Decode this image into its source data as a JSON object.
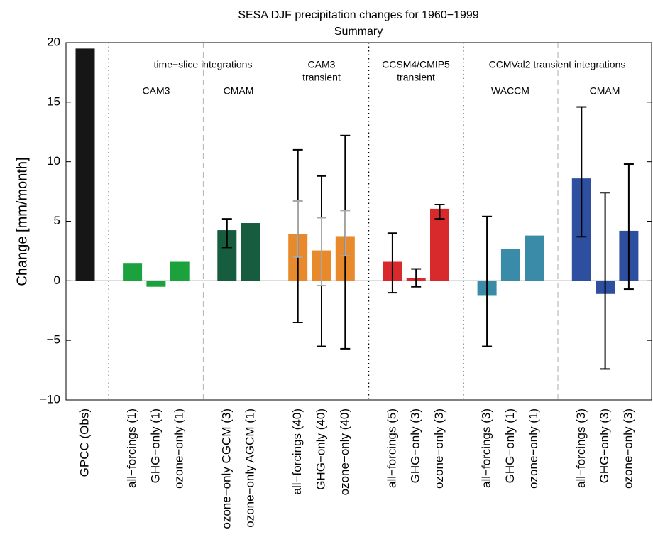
{
  "chart_data": {
    "type": "bar",
    "title": "SESA DJF precipitation changes for 1960−1999",
    "subtitle": "Summary",
    "y_label": "Change [mm/month]",
    "categories": [
      "GPCC (Obs)",
      null,
      "all−forcings (1)",
      "GHG−only (1)",
      "ozone−only (1)",
      null,
      "ozone−only CGCM (3)",
      "ozone−only AGCM (1)",
      null,
      "all−forcings (40)",
      "GHG−only (40)",
      "ozone−only (40)",
      null,
      "all−forcings (5)",
      "GHG−only (3)",
      "ozone−only (3)",
      null,
      "all−forcings (3)",
      "GHG−only (1)",
      "ozone−only (1)",
      null,
      "all−forcings (3)",
      "GHG−only (3)",
      "ozone−only (3)"
    ],
    "values": [
      19.5,
      null,
      1.5,
      -0.5,
      1.6,
      null,
      4.25,
      4.85,
      null,
      3.9,
      2.55,
      3.75,
      null,
      1.6,
      0.2,
      6.05,
      null,
      -1.2,
      2.7,
      3.8,
      null,
      8.6,
      -1.1,
      4.2
    ],
    "colors": [
      "#161616",
      null,
      "#1ba23c",
      "#1ba23c",
      "#1ba23c",
      null,
      "#165c3f",
      "#165c3f",
      null,
      "#e8892b",
      "#e8892b",
      "#e8892b",
      null,
      "#d82a2c",
      "#d82a2c",
      "#d82a2c",
      null,
      "#3a8ba8",
      "#3a8ba8",
      "#3a8ba8",
      null,
      "#2e4f9f",
      "#2e4f9f",
      "#2e4f9f"
    ],
    "error_low": [
      null,
      null,
      null,
      null,
      null,
      null,
      2.8,
      null,
      null,
      -3.5,
      -5.5,
      -5.7,
      null,
      -1.0,
      -0.5,
      5.2,
      null,
      -5.5,
      null,
      null,
      null,
      3.7,
      -7.4,
      -0.7
    ],
    "error_high": [
      null,
      null,
      null,
      null,
      null,
      null,
      5.2,
      null,
      null,
      11.0,
      8.8,
      12.2,
      null,
      4.0,
      1.0,
      6.4,
      null,
      5.4,
      null,
      null,
      null,
      14.6,
      7.4,
      9.8
    ],
    "spread_low": [
      null,
      null,
      null,
      null,
      null,
      null,
      null,
      null,
      null,
      2.0,
      -0.4,
      2.1,
      null,
      null,
      null,
      null,
      null,
      null,
      null,
      null,
      null,
      null,
      null,
      null
    ],
    "spread_high": [
      null,
      null,
      null,
      null,
      null,
      null,
      null,
      null,
      null,
      6.7,
      5.3,
      5.9,
      null,
      null,
      null,
      null,
      null,
      null,
      null,
      null,
      null,
      null,
      null,
      null
    ],
    "ylim": [
      -10,
      20
    ],
    "yticks": [
      {
        "value": -10,
        "label": "−10"
      },
      {
        "value": -5,
        "label": "−5"
      },
      0,
      5,
      10,
      15,
      20
    ],
    "annotations": [
      "time−slice integrations",
      "CAM3",
      "CMAM",
      "CAM3",
      "transient",
      "CCSM4/CMIP5",
      "transient",
      "CCMVal2 transient integrations",
      "WACCM",
      "CMAM"
    ]
  }
}
